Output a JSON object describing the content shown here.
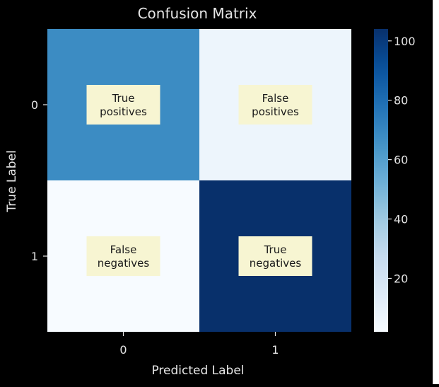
{
  "chart_data": {
    "type": "heatmap",
    "title": "Confusion Matrix",
    "xlabel": "Predicted Label",
    "ylabel": "True Label",
    "x_ticks": [
      "0",
      "1"
    ],
    "y_ticks": [
      "0",
      "1"
    ],
    "values": [
      [
        68,
        7
      ],
      [
        2,
        104
      ]
    ],
    "cell_annotations": [
      [
        "True\npositives",
        "False\npositives"
      ],
      [
        "False\nnegatives",
        "True\nnegatives"
      ]
    ],
    "colormap": "Blues",
    "colorbar": {
      "ticks": [
        20,
        40,
        60,
        80,
        100
      ],
      "range": [
        2,
        104
      ]
    },
    "colors": {
      "background": "#000000",
      "text": "#e6e6e6",
      "label_box": "#f7f5d2",
      "label_text": "#1a1a1a"
    }
  }
}
